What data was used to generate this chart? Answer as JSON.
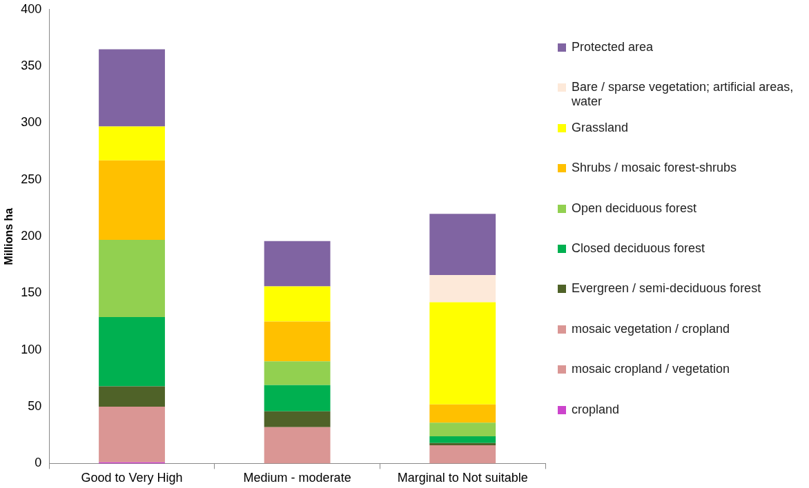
{
  "chart_data": {
    "type": "bar",
    "stacked": true,
    "ylabel": "Millions ha",
    "categories": [
      "Good to Very High",
      "Medium - moderate",
      "Marginal to Not suitable"
    ],
    "ylim": [
      0,
      400
    ],
    "yticks": [
      0,
      50,
      100,
      150,
      200,
      250,
      300,
      350,
      400
    ],
    "grid": false,
    "legend": "right",
    "series": [
      {
        "name": "cropland",
        "color": "#cc44cc",
        "values": [
          1,
          0,
          0
        ]
      },
      {
        "name": "mosaic cropland / vegetation",
        "color": "#da9694",
        "values": [
          49,
          32,
          16
        ]
      },
      {
        "name": "mosaic vegetation / cropland",
        "color": "#da9694",
        "values": [
          0,
          0,
          0
        ]
      },
      {
        "name": "Evergreen / semi-deciduous forest",
        "color": "#4f6228",
        "values": [
          18,
          14,
          2
        ]
      },
      {
        "name": "Closed deciduous forest",
        "color": "#00b050",
        "values": [
          61,
          23,
          6
        ]
      },
      {
        "name": "Open deciduous forest",
        "color": "#92d050",
        "values": [
          68,
          21,
          12
        ]
      },
      {
        "name": "Shrubs / mosaic forest-shrubs",
        "color": "#ffc000",
        "values": [
          70,
          35,
          16
        ]
      },
      {
        "name": "Grassland",
        "color": "#ffff00",
        "values": [
          30,
          31,
          90
        ]
      },
      {
        "name": "Bare / sparse vegetation; artificial areas, water",
        "color": "#fde9d9",
        "values": [
          0,
          0,
          24
        ]
      },
      {
        "name": "Protected area",
        "color": "#8064a2",
        "values": [
          68,
          40,
          54
        ]
      }
    ]
  }
}
